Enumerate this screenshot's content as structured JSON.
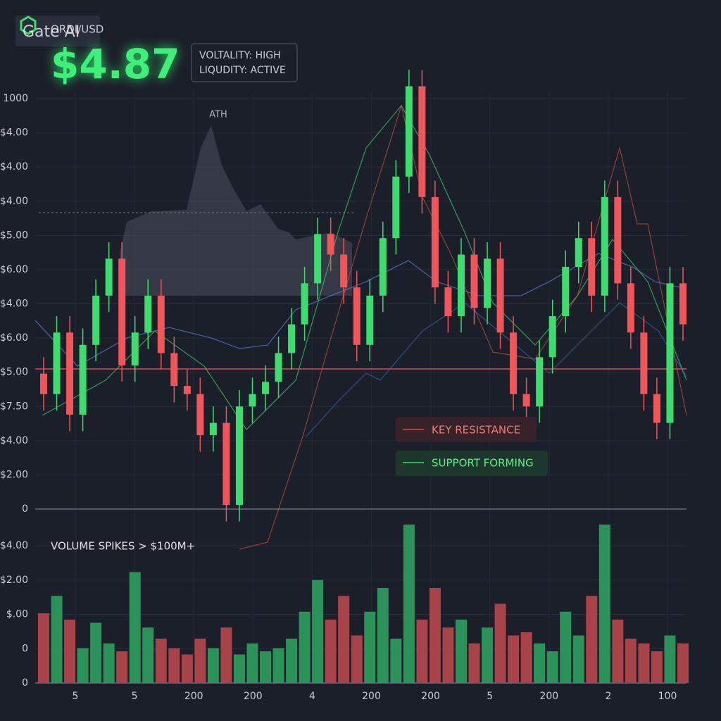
{
  "header": {
    "brand": "Gate AI",
    "pair": "ORDI/USD",
    "price": "$4.87"
  },
  "badges": [
    "VOLTALITY: HIGH",
    "LIQUDITY: ACTIVE"
  ],
  "price_panel": {
    "y_labels": [
      "1000",
      "$4.00",
      "$4.00",
      "$4.00",
      "$5.00",
      "$6.00",
      "$4.00",
      "$6.00",
      "$5.00",
      "$7.50",
      "$4.00",
      "$2.00",
      "0"
    ],
    "annotation": "ATH",
    "candles": {
      "open": [
        33,
        28,
        43,
        23,
        40,
        52,
        61,
        35,
        43,
        52,
        38,
        30,
        28,
        18,
        21,
        1,
        25,
        28,
        31,
        38,
        45,
        55,
        67,
        62,
        54,
        40,
        52,
        66,
        81,
        103,
        76,
        54,
        47,
        62,
        49,
        61,
        43,
        28,
        25,
        37,
        47,
        59,
        66,
        52,
        76,
        55,
        43,
        28,
        21,
        55
      ],
      "high": [
        37,
        47,
        47,
        44,
        56,
        65,
        65,
        47,
        56,
        56,
        42,
        34,
        32,
        25,
        25,
        29,
        32,
        35,
        42,
        49,
        59,
        71,
        71,
        66,
        58,
        56,
        70,
        85,
        107,
        107,
        80,
        58,
        66,
        66,
        65,
        65,
        47,
        32,
        41,
        51,
        63,
        70,
        70,
        80,
        80,
        59,
        47,
        32,
        59,
        59
      ],
      "low": [
        24,
        24,
        19,
        19,
        36,
        48,
        31,
        31,
        39,
        34,
        26,
        24,
        14,
        14,
        -3,
        -3,
        21,
        24,
        27,
        34,
        41,
        51,
        58,
        50,
        36,
        36,
        48,
        62,
        77,
        72,
        50,
        43,
        43,
        45,
        45,
        39,
        24,
        21,
        21,
        33,
        43,
        55,
        48,
        48,
        51,
        39,
        24,
        17,
        17,
        41
      ],
      "close": [
        28,
        43,
        23,
        40,
        52,
        61,
        35,
        43,
        52,
        38,
        30,
        28,
        18,
        21,
        1,
        25,
        28,
        31,
        38,
        45,
        55,
        67,
        62,
        54,
        40,
        52,
        66,
        81,
        103,
        76,
        54,
        47,
        62,
        49,
        61,
        43,
        28,
        25,
        37,
        47,
        59,
        66,
        52,
        76,
        55,
        43,
        28,
        21,
        55,
        45
      ]
    }
  },
  "legend": [
    "KEY RESISTANCE",
    "SUPPORT FORMING"
  ],
  "volume_panel": {
    "title": "VOLUME SPIKES > $100M+",
    "y_labels": [
      "$4.00",
      "$2.00",
      "$.00",
      "0",
      "0"
    ],
    "volumes": [
      44,
      55,
      40,
      22,
      38,
      25,
      20,
      70,
      35,
      28,
      22,
      18,
      28,
      22,
      35,
      18,
      25,
      20,
      22,
      28,
      45,
      65,
      40,
      55,
      30,
      45,
      60,
      28,
      100,
      40,
      60,
      35,
      40,
      25,
      35,
      50,
      30,
      32,
      25,
      20,
      45,
      30,
      55,
      100,
      40,
      28,
      25,
      20,
      30,
      25
    ]
  },
  "x_labels": [
    "5",
    "5",
    "200",
    "200",
    "4",
    "200",
    "200",
    "5",
    "200",
    "2",
    "100"
  ]
}
